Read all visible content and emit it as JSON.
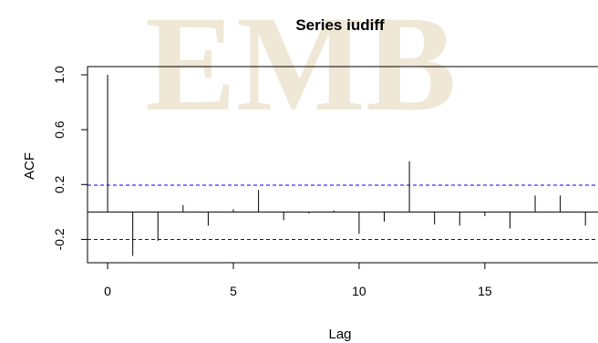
{
  "chart_data": {
    "type": "bar",
    "title": "Series  iudiff",
    "xlabel": "Lag",
    "ylabel": "ACF",
    "xlim": [
      -0.8,
      19.5
    ],
    "ylim": [
      -0.37,
      1.06
    ],
    "x_ticks": [
      0,
      5,
      10,
      15
    ],
    "x_tick_labels": [
      "0",
      "5",
      "10",
      "15"
    ],
    "y_ticks": [
      -0.2,
      0.2,
      0.6,
      1.0
    ],
    "y_tick_labels": [
      "-0.2",
      "0.2",
      "0.6",
      "1.0"
    ],
    "lags": [
      0,
      1,
      2,
      3,
      4,
      5,
      6,
      7,
      8,
      9,
      10,
      11,
      12,
      13,
      14,
      15,
      16,
      17,
      18,
      19
    ],
    "values": [
      1.0,
      -0.32,
      -0.21,
      0.05,
      -0.1,
      0.02,
      0.16,
      -0.06,
      -0.01,
      0.01,
      -0.16,
      -0.07,
      0.37,
      -0.09,
      -0.1,
      -0.03,
      -0.12,
      0.12,
      0.12,
      -0.1
    ],
    "confidence_bounds": [
      0.195,
      -0.2
    ],
    "bound_color": "#0000ff",
    "grid": false,
    "legend": "none"
  }
}
